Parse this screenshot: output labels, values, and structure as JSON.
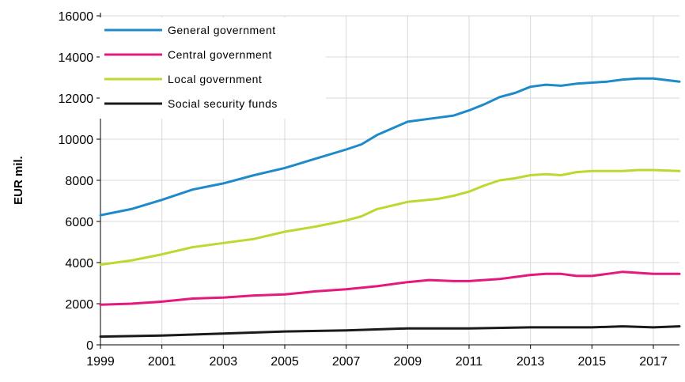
{
  "chart_data": {
    "type": "line",
    "ylabel": "EUR mil.",
    "xlim": [
      1999,
      2017.85
    ],
    "ylim": [
      0,
      16000
    ],
    "grid": true,
    "legend_position": "top-left",
    "x_ticks": [
      "1999",
      "2001",
      "2003",
      "2005",
      "2007",
      "2009",
      "2011",
      "2013",
      "2015",
      "2017"
    ],
    "y_ticks": [
      "0",
      "2000",
      "4000",
      "6000",
      "8000",
      "10000",
      "12000",
      "14000",
      "16000"
    ],
    "series": [
      {
        "name": "General government",
        "color": "#1f8ac9",
        "x": [
          1999,
          2000,
          2001,
          2002,
          2003,
          2004,
          2005,
          2006,
          2007,
          2007.5,
          2008,
          2009,
          2010,
          2010.5,
          2011,
          2011.5,
          2012,
          2012.5,
          2013,
          2013.5,
          2014,
          2014.5,
          2015,
          2015.5,
          2016,
          2016.5,
          2017,
          2017.85
        ],
        "values": [
          6300,
          6600,
          7050,
          7550,
          7850,
          8250,
          8600,
          9050,
          9500,
          9750,
          10200,
          10850,
          11050,
          11150,
          11400,
          11700,
          12050,
          12250,
          12550,
          12650,
          12600,
          12700,
          12750,
          12800,
          12900,
          12950,
          12950,
          12800
        ]
      },
      {
        "name": "Central government",
        "color": "#e5187d",
        "x": [
          1999,
          2000,
          2001,
          2002,
          2003,
          2004,
          2005,
          2006,
          2007,
          2008,
          2009,
          2009.7,
          2010.5,
          2011,
          2012,
          2013,
          2013.5,
          2014,
          2014.5,
          2015,
          2015.5,
          2016,
          2016.5,
          2017,
          2017.85
        ],
        "values": [
          1950,
          2000,
          2100,
          2250,
          2300,
          2400,
          2450,
          2600,
          2700,
          2850,
          3050,
          3150,
          3100,
          3100,
          3200,
          3400,
          3450,
          3450,
          3350,
          3350,
          3450,
          3550,
          3500,
          3450,
          3450
        ]
      },
      {
        "name": "Local government",
        "color": "#bfd730",
        "x": [
          1999,
          2000,
          2001,
          2002,
          2003,
          2004,
          2005,
          2006,
          2007,
          2007.5,
          2008,
          2009,
          2010,
          2010.5,
          2011,
          2011.5,
          2012,
          2012.5,
          2013,
          2013.5,
          2014,
          2014.5,
          2015,
          2015.5,
          2016,
          2016.5,
          2017,
          2017.85
        ],
        "values": [
          3900,
          4100,
          4400,
          4750,
          4950,
          5150,
          5500,
          5750,
          6050,
          6250,
          6600,
          6950,
          7100,
          7250,
          7450,
          7750,
          8000,
          8100,
          8250,
          8300,
          8250,
          8400,
          8450,
          8450,
          8450,
          8500,
          8500,
          8450
        ]
      },
      {
        "name": "Social security funds",
        "color": "#1a1a1a",
        "x": [
          1999,
          2001,
          2003,
          2005,
          2007,
          2009,
          2010,
          2011,
          2013,
          2015,
          2016,
          2017,
          2017.85
        ],
        "values": [
          400,
          450,
          550,
          650,
          700,
          800,
          800,
          800,
          850,
          850,
          900,
          850,
          900
        ]
      }
    ]
  }
}
